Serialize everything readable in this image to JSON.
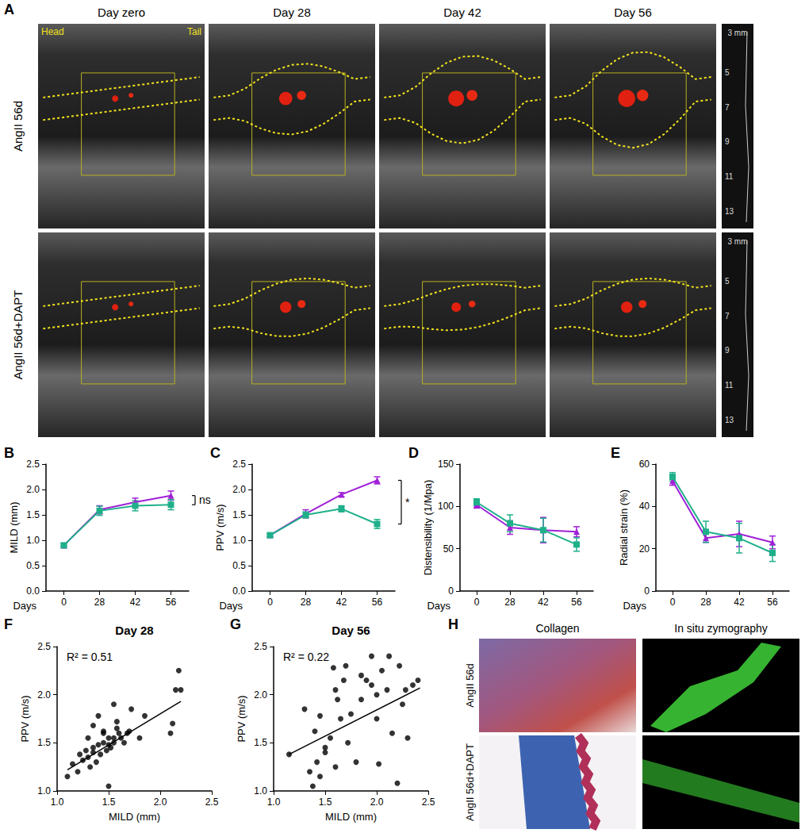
{
  "chart_data": [
    {
      "panel": "B",
      "type": "line",
      "categories": [
        "0",
        "28",
        "42",
        "56"
      ],
      "x_label": "Days",
      "y_label": "MILD (mm)",
      "ylim": [
        0,
        2.5
      ],
      "yticks": [
        {
          "value": 0,
          "label": "0.0"
        },
        0.5,
        {
          "value": 1,
          "label": "1.0"
        },
        1.5,
        {
          "value": 2,
          "label": "2.0"
        },
        2.5
      ],
      "grid": false,
      "series": [
        {
          "color": "#a020d8",
          "marker": "triangle",
          "values": [
            0.9,
            1.6,
            1.75,
            1.88
          ],
          "errors": [
            0.03,
            0.08,
            0.08,
            0.09
          ]
        },
        {
          "color": "#1fb08a",
          "marker": "square",
          "values": [
            0.9,
            1.58,
            1.68,
            1.7
          ],
          "errors": [
            0.03,
            0.09,
            0.1,
            0.1
          ]
        }
      ],
      "annotations": [
        {
          "text": "ns"
        }
      ]
    },
    {
      "panel": "C",
      "type": "line",
      "categories": [
        "0",
        "28",
        "42",
        "56"
      ],
      "x_label": "Days",
      "y_label": "PPV (m/s)",
      "ylim": [
        0,
        2.5
      ],
      "yticks": [
        {
          "value": 0,
          "label": "0.0"
        },
        0.5,
        {
          "value": 1,
          "label": "1.0"
        },
        1.5,
        {
          "value": 2,
          "label": "2.0"
        },
        2.5
      ],
      "grid": false,
      "series": [
        {
          "color": "#a020d8",
          "marker": "triangle",
          "values": [
            1.1,
            1.52,
            1.9,
            2.18
          ],
          "errors": [
            0.03,
            0.08,
            0.04,
            0.07
          ]
        },
        {
          "color": "#1fb08a",
          "marker": "square",
          "values": [
            1.1,
            1.5,
            1.62,
            1.32
          ],
          "errors": [
            0.03,
            0.06,
            0.06,
            0.09
          ]
        }
      ],
      "annotations": [
        {
          "text": "*"
        }
      ]
    },
    {
      "panel": "D",
      "type": "line",
      "categories": [
        "0",
        "28",
        "42",
        "56"
      ],
      "x_label": "Days",
      "y_label": "Distensibility (1/Mpa)",
      "ylim": [
        0,
        150
      ],
      "yticks": [
        0,
        50,
        100,
        150
      ],
      "grid": false,
      "series": [
        {
          "color": "#a020d8",
          "marker": "triangle",
          "values": [
            102,
            75,
            72,
            70
          ],
          "errors": [
            4,
            8,
            15,
            6
          ]
        },
        {
          "color": "#1fb08a",
          "marker": "square",
          "values": [
            105,
            80,
            72,
            55
          ],
          "errors": [
            4,
            10,
            14,
            8
          ]
        }
      ]
    },
    {
      "panel": "E",
      "type": "line",
      "categories": [
        "0",
        "28",
        "42",
        "56"
      ],
      "x_label": "Days",
      "y_label": "Radial strain (%)",
      "ylim": [
        0,
        60
      ],
      "yticks": [
        0,
        20,
        40,
        60
      ],
      "grid": false,
      "series": [
        {
          "color": "#a020d8",
          "marker": "triangle",
          "values": [
            52,
            25,
            27,
            23
          ],
          "errors": [
            2,
            2,
            6,
            3
          ]
        },
        {
          "color": "#1fb08a",
          "marker": "square",
          "values": [
            54,
            28,
            25,
            18
          ],
          "errors": [
            2,
            5,
            7,
            4
          ]
        }
      ]
    },
    {
      "panel": "F",
      "type": "scatter",
      "title": "Day 28",
      "x_label": "MILD (mm)",
      "y_label": "PPV (m/s)",
      "xlim": [
        1,
        2.5
      ],
      "xticks": [
        {
          "value": 1,
          "label": "1.0"
        },
        1.5,
        {
          "value": 2,
          "label": "2.0"
        },
        2.5
      ],
      "ylim": [
        1,
        2.5
      ],
      "yticks": [
        {
          "value": 1,
          "label": "1.0"
        },
        1.5,
        {
          "value": 2,
          "label": "2.0"
        },
        2.5
      ],
      "grid": false,
      "series": [
        {
          "type": "scatter",
          "marker": "circle",
          "color": "#000000",
          "x": [
            1.1,
            1.15,
            1.2,
            1.22,
            1.25,
            1.28,
            1.3,
            1.3,
            1.32,
            1.35,
            1.35,
            1.38,
            1.4,
            1.4,
            1.42,
            1.45,
            1.45,
            1.48,
            1.5,
            1.5,
            1.52,
            1.55,
            1.55,
            1.58,
            1.6,
            1.62,
            1.65,
            1.68,
            1.7,
            1.72,
            1.8,
            1.85,
            1.35,
            1.45,
            1.5,
            1.55,
            2.1,
            2.12,
            2.15,
            2.18,
            2.2,
            1.58
          ],
          "y": [
            1.15,
            1.28,
            1.2,
            1.38,
            1.32,
            1.42,
            1.35,
            1.55,
            1.25,
            1.68,
            1.45,
            1.3,
            1.48,
            1.78,
            1.38,
            1.5,
            1.6,
            1.42,
            1.55,
            1.05,
            1.45,
            1.5,
            1.9,
            1.72,
            1.6,
            1.55,
            1.5,
            1.6,
            1.62,
            1.85,
            1.55,
            1.78,
            1.4,
            1.62,
            1.48,
            1.55,
            1.6,
            1.7,
            2.05,
            2.25,
            2.05,
            1.65
          ]
        },
        {
          "type": "line",
          "line_style": "solid",
          "color": "#000000",
          "x": [
            1.1,
            2.2
          ],
          "y": [
            1.22,
            1.93
          ]
        }
      ],
      "annotations": [
        {
          "text": "R² = 0.51"
        }
      ]
    },
    {
      "panel": "G",
      "type": "scatter",
      "title": "Day 56",
      "x_label": "MILD (mm)",
      "y_label": "PPV (m/s)",
      "xlim": [
        1,
        2.5
      ],
      "xticks": [
        {
          "value": 1,
          "label": "1.0"
        },
        1.5,
        {
          "value": 2,
          "label": "2.0"
        },
        2.5
      ],
      "ylim": [
        1,
        2.5
      ],
      "yticks": [
        {
          "value": 1,
          "label": "1.0"
        },
        1.5,
        {
          "value": 2,
          "label": "2.0"
        },
        2.5
      ],
      "grid": false,
      "series": [
        {
          "type": "scatter",
          "marker": "circle",
          "color": "#000000",
          "x": [
            1.15,
            1.3,
            1.35,
            1.38,
            1.4,
            1.42,
            1.45,
            1.45,
            1.5,
            1.55,
            1.6,
            1.6,
            1.62,
            1.65,
            1.68,
            1.7,
            1.75,
            1.8,
            1.85,
            1.85,
            1.9,
            1.95,
            2.0,
            2.0,
            2.02,
            2.05,
            2.1,
            2.12,
            2.15,
            2.2,
            2.22,
            2.25,
            2.3,
            2.35,
            2.4,
            1.5,
            1.58,
            1.72,
            1.95,
            2.28
          ],
          "y": [
            1.38,
            1.85,
            1.2,
            1.05,
            1.62,
            1.3,
            1.15,
            1.78,
            1.4,
            1.55,
            1.25,
            2.05,
            1.95,
            1.75,
            2.15,
            2.3,
            1.8,
            1.3,
            2.2,
            1.95,
            2.15,
            2.4,
            1.75,
            2.0,
            1.28,
            2.25,
            2.05,
            2.4,
            1.6,
            1.08,
            2.3,
            1.9,
            1.55,
            2.1,
            2.15,
            1.45,
            2.28,
            1.5,
            2.1,
            2.05
          ]
        },
        {
          "type": "line",
          "line_style": "solid",
          "color": "#000000",
          "x": [
            1.15,
            2.42
          ],
          "y": [
            1.38,
            2.07
          ]
        }
      ],
      "annotations": [
        {
          "text": "R² = 0.22"
        }
      ]
    }
  ],
  "panel_A": {
    "panel": "A",
    "columns": [
      "Day zero",
      "Day 28",
      "Day 42",
      "Day 56"
    ],
    "rows": [
      "AngII 56d",
      "AngII 56d+DAPT"
    ],
    "direction_labels": [
      "Head",
      "Tail"
    ],
    "depth_scale": {
      "label": "3 mm",
      "values": [
        5,
        7,
        9,
        11,
        13
      ]
    }
  },
  "panel_H": {
    "panel": "H",
    "columns": [
      "Collagen",
      "In situ zymography"
    ],
    "rows": [
      "AngII 56d",
      "AngII 56d+DAPT"
    ]
  }
}
